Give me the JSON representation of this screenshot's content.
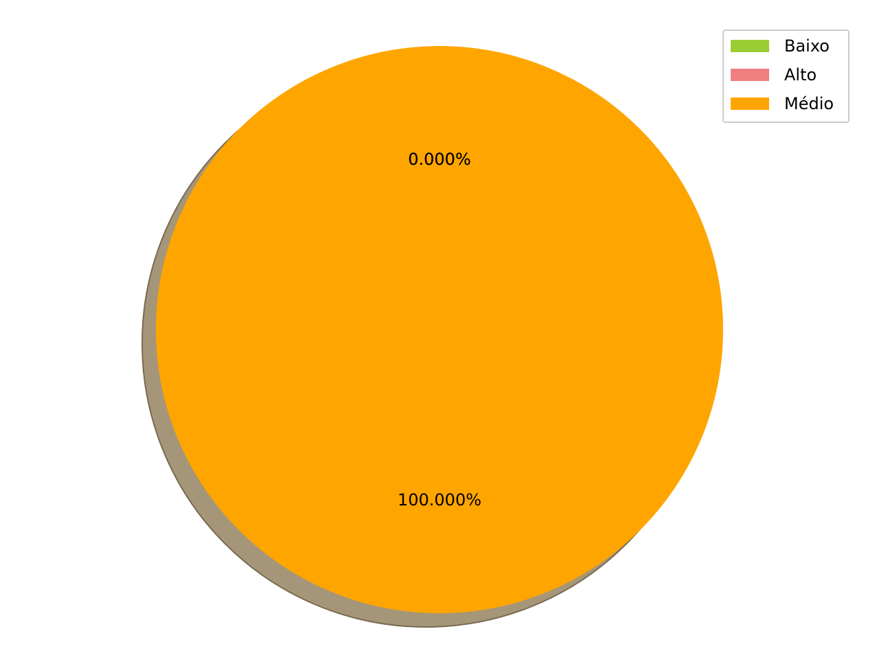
{
  "chart_data": {
    "type": "pie",
    "categories": [
      "Baixo",
      "Alto",
      "Médio"
    ],
    "values": [
      0,
      0,
      100
    ],
    "colors": [
      "#9acd32",
      "#f08080",
      "#ffa500"
    ],
    "value_labels": [
      "0.000%",
      "0.000%",
      "100.000%"
    ],
    "shadow": true,
    "legend": {
      "placement": "top-right",
      "entries": [
        "Baixo",
        "Alto",
        "Médio"
      ]
    }
  }
}
